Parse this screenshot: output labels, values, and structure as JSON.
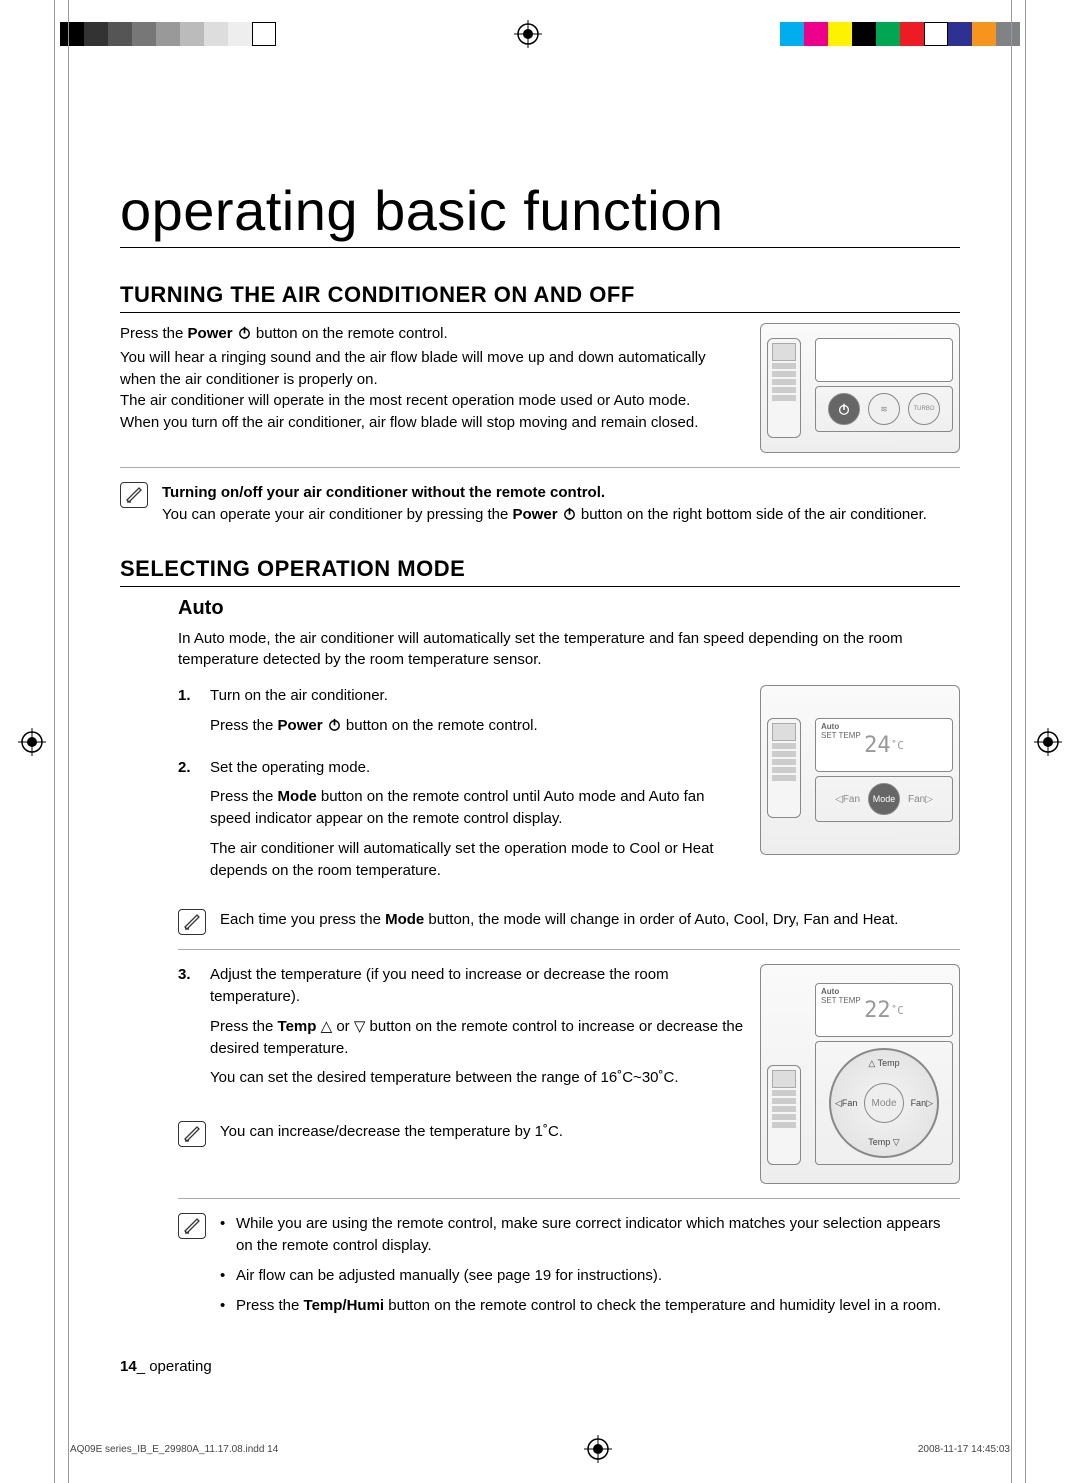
{
  "print": {
    "colorbar1": [
      "#000000",
      "#333333",
      "#555555",
      "#777777",
      "#999999",
      "#bbbbbb",
      "#dddddd",
      "#eeeeee",
      "#ffffff"
    ],
    "colorbar2": [
      "#00aeef",
      "#ec008c",
      "#fff200",
      "#000000",
      "#00a651",
      "#ed1c24",
      "#ffffff",
      "#2e3192",
      "#f7941d",
      "#808285"
    ],
    "footer_file": "AQ09E series_IB_E_29980A_11.17.08.indd   14",
    "footer_date": "2008-11-17   14:45:03"
  },
  "title": "operating basic function",
  "s1": {
    "heading": "TURNING THE AIR CONDITIONER ON AND OFF",
    "p1_a": "Press the ",
    "p1_bold": "Power",
    "p1_b": " button on the remote control.",
    "p2": "You will hear a ringing sound and the air flow blade will move up and down automatically when the air conditioner is properly on.",
    "p3": "The air conditioner will operate in the most recent operation mode used or Auto mode.",
    "p4": "When you turn off the air conditioner, air flow blade will stop moving and remain closed.",
    "note_title": "Turning on/off your air conditioner without the remote control.",
    "note_a": "You can operate your air conditioner by pressing the ",
    "note_bold": "Power",
    "note_b": " button on the right bottom side of the air conditioner."
  },
  "s2": {
    "heading": "SELECTING OPERATION MODE",
    "sub": "Auto",
    "intro": "In Auto mode, the air conditioner will automatically set the temperature and fan speed depending on the room temperature detected by the room temperature sensor.",
    "step1_num": "1.",
    "step1_a": "Turn on the air conditioner.",
    "step1_b_pre": "Press the ",
    "step1_b_bold": "Power",
    "step1_b_post": " button on the remote control.",
    "step2_num": "2.",
    "step2_a": "Set the operating mode.",
    "step2_b_pre": "Press the ",
    "step2_b_bold": "Mode",
    "step2_b_post": " button on the remote control until Auto mode and Auto fan speed indicator appear on the remote control display.",
    "step2_c": "The air conditioner will automatically set the operation mode to Cool or Heat depends on the room temperature.",
    "note1_pre": "Each time you press the ",
    "note1_bold": "Mode",
    "note1_post": " button, the mode will change in order of Auto, Cool, Dry, Fan and Heat.",
    "step3_num": "3.",
    "step3_a": "Adjust the temperature (if you need to increase or decrease the room temperature).",
    "step3_b_pre": "Press the ",
    "step3_b_bold": "Temp",
    "step3_b_mid": " △ or ▽ button on the remote control to increase or decrease the desired temperature.",
    "step3_c": "You can set the desired temperature between the range of 16˚C~30˚C.",
    "note2": "You can increase/decrease the temperature by 1˚C.",
    "tips_b1": "While you are using the remote control, make sure correct indicator which matches your selection appears on the remote control display.",
    "tips_b2": "Air flow can be adjusted manually (see page 19 for instructions).",
    "tips_b3_pre": "Press the ",
    "tips_b3_bold": "Temp/Humi",
    "tips_b3_post": " button on the remote control to check the temperature and humidity level in a room."
  },
  "illus": {
    "lcd1_mode": "Auto",
    "lcd1_temp": "24",
    "lcd1_unit": "˚C",
    "lcd2_mode": "Auto",
    "lcd2_temp": "22",
    "lcd2_unit": "˚C",
    "mode_label": "Mode",
    "fan_left": "◁Fan",
    "fan_right": "Fan▷",
    "temp_up": "△ Temp",
    "temp_down": "Temp ▽",
    "turbo": "TURBO"
  },
  "footer": {
    "pagenum": "14",
    "section": "_ operating"
  }
}
